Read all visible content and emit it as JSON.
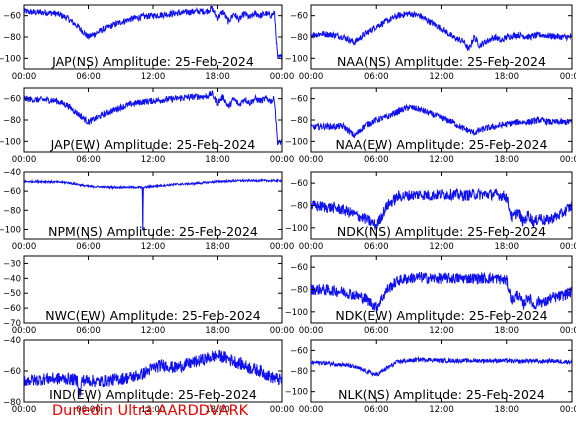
{
  "footer": "Dunedin Ultra AARDDVARK",
  "colors": {
    "trace": "#1010ee",
    "axes": "#000000",
    "footer": "#e00000"
  },
  "chart_data": [
    {
      "id": "jap-ns",
      "type": "line",
      "title": "JAP(NS) Amplitude: 25-Feb-2024",
      "xticks": [
        "00:00",
        "06:00",
        "12:00",
        "18:00",
        "00:00"
      ],
      "xlim": [
        0,
        24
      ],
      "ylim": [
        -110,
        -50
      ],
      "yticks": [
        -100,
        -80,
        -60
      ],
      "x": [
        0,
        1,
        2,
        3,
        4,
        5,
        6,
        7,
        8,
        9,
        10,
        11,
        12,
        13,
        14,
        15,
        16,
        17,
        17.5,
        18,
        18.5,
        19,
        19.5,
        20,
        20.5,
        21,
        21.5,
        22,
        22.5,
        23,
        23.3,
        23.6,
        24
      ],
      "y": [
        -56,
        -57,
        -57,
        -58,
        -62,
        -70,
        -80,
        -75,
        -70,
        -66,
        -63,
        -61,
        -60,
        -59,
        -58,
        -57,
        -56,
        -56,
        -53,
        -62,
        -56,
        -66,
        -58,
        -64,
        -58,
        -62,
        -58,
        -60,
        -58,
        -60,
        -57,
        -100,
        -98
      ],
      "band": 3
    },
    {
      "id": "naa-ns",
      "type": "line",
      "title": "NAA(NS) Amplitude: 25-Feb-2024",
      "xticks": [
        "00:00",
        "06:00",
        "12:00",
        "18:00",
        "00:00"
      ],
      "xlim": [
        0,
        24
      ],
      "ylim": [
        -110,
        -50
      ],
      "yticks": [
        -100,
        -80,
        -60
      ],
      "x": [
        0,
        1,
        2,
        3,
        4,
        5,
        6,
        7,
        8,
        9,
        10,
        11,
        12,
        13,
        14,
        14.5,
        15,
        15.5,
        16,
        16.5,
        17,
        17.5,
        18,
        19,
        20,
        21,
        22,
        23,
        24
      ],
      "y": [
        -78,
        -77,
        -78,
        -80,
        -85,
        -77,
        -70,
        -65,
        -60,
        -58,
        -60,
        -66,
        -72,
        -80,
        -84,
        -92,
        -80,
        -88,
        -85,
        -82,
        -80,
        -84,
        -80,
        -78,
        -80,
        -78,
        -79,
        -80,
        -80
      ],
      "band": 3
    },
    {
      "id": "jap-ew",
      "type": "line",
      "title": "JAP(EW) Amplitude: 25-Feb-2024",
      "xticks": [
        "00:00",
        "06:00",
        "12:00",
        "18:00",
        "00:00"
      ],
      "xlim": [
        0,
        24
      ],
      "ylim": [
        -110,
        -50
      ],
      "yticks": [
        -100,
        -80,
        -60
      ],
      "x": [
        0,
        1,
        2,
        3,
        4,
        5,
        6,
        7,
        8,
        9,
        10,
        11,
        12,
        13,
        14,
        15,
        16,
        17,
        17.5,
        18,
        18.5,
        19,
        19.5,
        20,
        20.5,
        21,
        21.5,
        22,
        22.5,
        23,
        23.3,
        23.6,
        24
      ],
      "y": [
        -60,
        -61,
        -61,
        -62,
        -66,
        -74,
        -82,
        -77,
        -72,
        -68,
        -65,
        -63,
        -62,
        -61,
        -60,
        -59,
        -58,
        -58,
        -55,
        -64,
        -58,
        -68,
        -60,
        -66,
        -60,
        -64,
        -60,
        -62,
        -60,
        -62,
        -60,
        -102,
        -100
      ],
      "band": 3
    },
    {
      "id": "naa-ew",
      "type": "line",
      "title": "NAA(EW) Amplitude: 25-Feb-2024",
      "xticks": [
        "00:00",
        "06:00",
        "12:00",
        "18:00",
        "00:00"
      ],
      "xlim": [
        0,
        24
      ],
      "ylim": [
        -110,
        -50
      ],
      "yticks": [
        -100,
        -80,
        -60
      ],
      "x": [
        0,
        1,
        2,
        3,
        4,
        5,
        6,
        7,
        8,
        9,
        10,
        11,
        12,
        13,
        14,
        15,
        16,
        17,
        18,
        19,
        20,
        21,
        22,
        23,
        24
      ],
      "y": [
        -87,
        -86,
        -86,
        -86,
        -95,
        -85,
        -80,
        -77,
        -72,
        -68,
        -70,
        -74,
        -78,
        -82,
        -88,
        -92,
        -88,
        -86,
        -84,
        -82,
        -82,
        -80,
        -82,
        -82,
        -82
      ],
      "band": 3
    },
    {
      "id": "npm-ns",
      "type": "line",
      "title": "NPM(NS) Amplitude: 25-Feb-2024",
      "xticks": [
        "00:00",
        "06:00",
        "12:00",
        "18:00",
        "00:00"
      ],
      "xlim": [
        0,
        24
      ],
      "ylim": [
        -110,
        -40
      ],
      "yticks": [
        -100,
        -80,
        -60,
        -40
      ],
      "x": [
        0,
        2,
        4,
        6,
        8,
        10,
        11,
        11.05,
        11.1,
        11.2,
        12,
        14,
        16,
        18,
        20,
        22,
        24
      ],
      "y": [
        -50,
        -50,
        -51,
        -55,
        -56,
        -56,
        -56,
        -101,
        -56,
        -56,
        -55,
        -53,
        -52,
        -50,
        -49,
        -49,
        -49
      ],
      "band": 1
    },
    {
      "id": "ndk-ns",
      "type": "line",
      "title": "NDK(NS) Amplitude: 25-Feb-2024",
      "xticks": [
        "00:00",
        "06:00",
        "12:00",
        "18:00",
        "00:00"
      ],
      "xlim": [
        0,
        24
      ],
      "ylim": [
        -110,
        -50
      ],
      "yticks": [
        -100,
        -80,
        -60
      ],
      "x": [
        0,
        1,
        2,
        3,
        4,
        5,
        6,
        7,
        8,
        9,
        10,
        11,
        12,
        13,
        14,
        15,
        16,
        17,
        18,
        18.5,
        19,
        19.5,
        20,
        20.5,
        21,
        21.5,
        22,
        23,
        24
      ],
      "y": [
        -80,
        -81,
        -82,
        -84,
        -88,
        -92,
        -98,
        -80,
        -72,
        -71,
        -70,
        -71,
        -70,
        -70,
        -71,
        -70,
        -70,
        -70,
        -72,
        -92,
        -85,
        -95,
        -88,
        -96,
        -90,
        -94,
        -92,
        -88,
        -80
      ],
      "band": 5
    },
    {
      "id": "nwc-ew",
      "type": "line",
      "title": "NWC(EW) Amplitude: 25-Feb-2024",
      "xticks": [
        "00:00",
        "06:00",
        "12:00",
        "18:00",
        "00:00"
      ],
      "xlim": [
        0,
        24
      ],
      "ylim": [
        -70,
        -25
      ],
      "yticks": [
        -70,
        -60,
        -50,
        -40,
        -30
      ],
      "x": [],
      "y": [],
      "band": 0
    },
    {
      "id": "ndk-ew",
      "type": "line",
      "title": "NDK(EW) Amplitude: 25-Feb-2024",
      "xticks": [
        "00:00",
        "06:00",
        "12:00",
        "18:00",
        "00:00"
      ],
      "xlim": [
        0,
        24
      ],
      "ylim": [
        -110,
        -50
      ],
      "yticks": [
        -100,
        -80,
        -60
      ],
      "x": [
        0,
        1,
        2,
        3,
        4,
        5,
        6,
        7,
        8,
        9,
        10,
        11,
        12,
        13,
        14,
        15,
        16,
        17,
        18,
        18.5,
        19,
        19.5,
        20,
        20.5,
        21,
        21.5,
        22,
        23,
        24
      ],
      "y": [
        -80,
        -80,
        -81,
        -82,
        -85,
        -88,
        -96,
        -80,
        -72,
        -70,
        -69,
        -70,
        -70,
        -70,
        -70,
        -70,
        -70,
        -70,
        -72,
        -90,
        -84,
        -94,
        -86,
        -95,
        -90,
        -92,
        -88,
        -86,
        -82
      ],
      "band": 5
    },
    {
      "id": "ind-ew",
      "type": "line",
      "title": "IND(EW) Amplitude: 25-Feb-2024",
      "xticks": [
        "00:00",
        "06:00",
        "12:00",
        "18:00",
        "00:00"
      ],
      "xlim": [
        0,
        24
      ],
      "ylim": [
        -80,
        -40
      ],
      "yticks": [
        -80,
        -60,
        -40
      ],
      "x": [
        0,
        1,
        2,
        3,
        4,
        5,
        5.2,
        5.4,
        6,
        7,
        8,
        9,
        10,
        11,
        12,
        13,
        14,
        15,
        16,
        17,
        18,
        19,
        20,
        21,
        22,
        23,
        24
      ],
      "y": [
        -66,
        -66,
        -65,
        -65,
        -65,
        -66,
        -76,
        -66,
        -66,
        -67,
        -66,
        -65,
        -64,
        -62,
        -58,
        -56,
        -58,
        -56,
        -54,
        -52,
        -50,
        -52,
        -55,
        -58,
        -60,
        -64,
        -66
      ],
      "band": 4
    },
    {
      "id": "nlk-ns",
      "type": "line",
      "title": "NLK(NS) Amplitude: 25-Feb-2024",
      "xticks": [
        "00:00",
        "06:00",
        "12:00",
        "18:00",
        "00:00"
      ],
      "xlim": [
        0,
        24
      ],
      "ylim": [
        -110,
        -50
      ],
      "yticks": [
        -100,
        -80,
        -60
      ],
      "x": [
        0,
        1,
        2,
        3,
        4,
        5,
        6,
        7,
        8,
        9,
        10,
        11,
        12,
        13,
        14,
        15,
        16,
        17,
        18,
        19,
        20,
        21,
        22,
        23,
        24
      ],
      "y": [
        -72,
        -72,
        -73,
        -74,
        -76,
        -80,
        -84,
        -77,
        -71,
        -70,
        -69,
        -69,
        -70,
        -70,
        -70,
        -70,
        -70,
        -70,
        -70,
        -71,
        -70,
        -71,
        -70,
        -71,
        -71
      ],
      "band": 2
    }
  ]
}
